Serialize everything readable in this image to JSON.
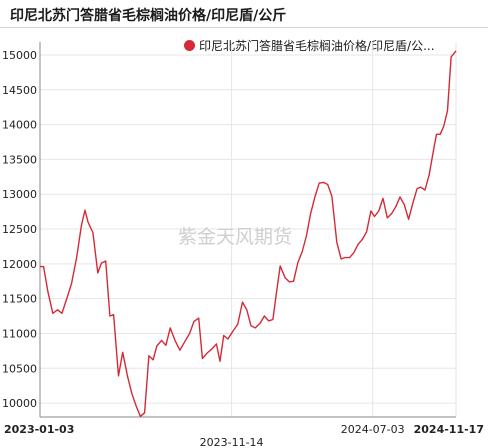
{
  "header": {
    "title": "印尼北苏门答腊省毛棕榈油价格/印尼盾/公斤"
  },
  "legend": {
    "label": "印尼北苏门答腊省毛棕榈油价格/印尼盾/公..."
  },
  "watermark": "紫金天风期货",
  "colors": {
    "series": "#d52a35",
    "grid": "#e6e6e6"
  },
  "chart_data": {
    "type": "line",
    "title": "印尼北苏门答腊省毛棕榈油价格/印尼盾/公斤",
    "xlabel": "",
    "ylabel": "",
    "ylim": [
      9800,
      15100
    ],
    "y_ticks": [
      10000,
      10500,
      11000,
      11500,
      12000,
      12500,
      13000,
      13500,
      14000,
      14500,
      15000
    ],
    "x_range": [
      "2023-01-03",
      "2024-11-17"
    ],
    "x_ticks": [
      {
        "label": "2023-01-03",
        "date": "2023-01-03",
        "bold": true
      },
      {
        "label": "2023-11-14",
        "date": "2023-11-14",
        "bold": false
      },
      {
        "label": "2024-07-03",
        "date": "2024-07-03",
        "bold": false
      },
      {
        "label": "2024-11-17",
        "date": "2024-11-17",
        "bold": true
      }
    ],
    "grid": true,
    "series": [
      {
        "name": "印尼北苏门答腊省毛棕榈油价格/印尼盾/公斤",
        "points": [
          [
            "2023-01-03",
            11960
          ],
          [
            "2023-01-09",
            11960
          ],
          [
            "2023-01-16",
            11600
          ],
          [
            "2023-01-24",
            11290
          ],
          [
            "2023-02-01",
            11340
          ],
          [
            "2023-02-08",
            11290
          ],
          [
            "2023-02-16",
            11500
          ],
          [
            "2023-02-24",
            11720
          ],
          [
            "2023-03-04",
            12080
          ],
          [
            "2023-03-12",
            12550
          ],
          [
            "2023-03-18",
            12770
          ],
          [
            "2023-03-23",
            12600
          ],
          [
            "2023-03-31",
            12450
          ],
          [
            "2023-04-08",
            11870
          ],
          [
            "2023-04-14",
            12010
          ],
          [
            "2023-04-21",
            12040
          ],
          [
            "2023-04-28",
            11250
          ],
          [
            "2023-05-04",
            11270
          ],
          [
            "2023-05-12",
            10390
          ],
          [
            "2023-05-19",
            10730
          ],
          [
            "2023-05-27",
            10380
          ],
          [
            "2023-06-03",
            10140
          ],
          [
            "2023-06-10",
            9960
          ],
          [
            "2023-06-17",
            9810
          ],
          [
            "2023-06-24",
            9860
          ],
          [
            "2023-07-01",
            10680
          ],
          [
            "2023-07-08",
            10620
          ],
          [
            "2023-07-14",
            10820
          ],
          [
            "2023-07-22",
            10900
          ],
          [
            "2023-07-29",
            10830
          ],
          [
            "2023-08-05",
            11080
          ],
          [
            "2023-08-13",
            10900
          ],
          [
            "2023-08-21",
            10760
          ],
          [
            "2023-08-29",
            10880
          ],
          [
            "2023-09-06",
            11000
          ],
          [
            "2023-09-13",
            11170
          ],
          [
            "2023-09-21",
            11220
          ],
          [
            "2023-09-27",
            10640
          ],
          [
            "2023-10-05",
            10720
          ],
          [
            "2023-10-13",
            10780
          ],
          [
            "2023-10-20",
            10850
          ],
          [
            "2023-10-26",
            10600
          ],
          [
            "2023-11-01",
            10970
          ],
          [
            "2023-11-08",
            10920
          ],
          [
            "2023-11-16",
            11030
          ],
          [
            "2023-11-24",
            11130
          ],
          [
            "2023-12-02",
            11450
          ],
          [
            "2023-12-09",
            11340
          ],
          [
            "2023-12-16",
            11110
          ],
          [
            "2023-12-23",
            11080
          ],
          [
            "2023-12-31",
            11150
          ],
          [
            "2024-01-07",
            11250
          ],
          [
            "2024-01-14",
            11180
          ],
          [
            "2024-01-21",
            11200
          ],
          [
            "2024-01-27",
            11600
          ],
          [
            "2024-02-02",
            11970
          ],
          [
            "2024-02-10",
            11800
          ],
          [
            "2024-02-17",
            11740
          ],
          [
            "2024-02-24",
            11750
          ],
          [
            "2024-03-02",
            12020
          ],
          [
            "2024-03-09",
            12170
          ],
          [
            "2024-03-16",
            12400
          ],
          [
            "2024-03-23",
            12720
          ],
          [
            "2024-03-30",
            12960
          ],
          [
            "2024-04-06",
            13160
          ],
          [
            "2024-04-13",
            13170
          ],
          [
            "2024-04-20",
            13140
          ],
          [
            "2024-04-27",
            12970
          ],
          [
            "2024-05-05",
            12310
          ],
          [
            "2024-05-12",
            12070
          ],
          [
            "2024-05-18",
            12090
          ],
          [
            "2024-05-26",
            12090
          ],
          [
            "2024-06-02",
            12160
          ],
          [
            "2024-06-09",
            12280
          ],
          [
            "2024-06-16",
            12350
          ],
          [
            "2024-06-23",
            12460
          ],
          [
            "2024-06-30",
            12760
          ],
          [
            "2024-07-06",
            12680
          ],
          [
            "2024-07-13",
            12760
          ],
          [
            "2024-07-20",
            12940
          ],
          [
            "2024-07-27",
            12660
          ],
          [
            "2024-08-03",
            12720
          ],
          [
            "2024-08-10",
            12820
          ],
          [
            "2024-08-17",
            12960
          ],
          [
            "2024-08-24",
            12850
          ],
          [
            "2024-08-31",
            12640
          ],
          [
            "2024-09-07",
            12870
          ],
          [
            "2024-09-14",
            13080
          ],
          [
            "2024-09-20",
            13100
          ],
          [
            "2024-09-27",
            13060
          ],
          [
            "2024-10-04",
            13280
          ],
          [
            "2024-10-11",
            13630
          ],
          [
            "2024-10-16",
            13860
          ],
          [
            "2024-10-22",
            13860
          ],
          [
            "2024-10-28",
            13980
          ],
          [
            "2024-11-03",
            14200
          ],
          [
            "2024-11-09",
            14970
          ],
          [
            "2024-11-17",
            15060
          ]
        ]
      }
    ]
  }
}
